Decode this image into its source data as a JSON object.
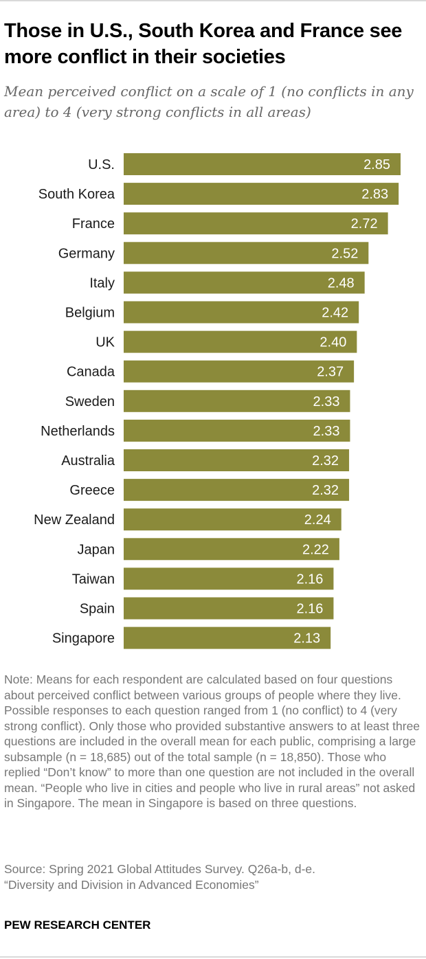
{
  "title": "Those in U.S., South Korea and France see more conflict in their societies",
  "subtitle": "Mean perceived conflict on a scale of 1 (no conflicts in any area) to 4 (very strong conflicts in all areas)",
  "note": "Note: Means for each respondent are calculated based on four questions about perceived conflict between various groups of people where they live. Possible responses to each question ranged from 1 (no conflict) to 4 (very strong conflict). Only those who provided substantive answers to at least three questions are included in the overall mean for each public, comprising a large subsample (n = 18,685) out of the total sample (n = 18,850). Those who replied “Don’t know” to more than one question are not included in the overall mean. “People who live in cities and people who live in rural areas” not asked in Singapore. The mean in Singapore is based on three questions.",
  "source_line1": "Source: Spring 2021 Global Attitudes Survey. Q26a-b, d-e.",
  "source_line2": "“Diversity and Division in Advanced Economies”",
  "brand": "PEW RESEARCH CENTER",
  "colors": {
    "bar": "#8b8a3a",
    "value_text": "#ffffff",
    "label_text": "#1a1a1a"
  },
  "chart_data": {
    "type": "bar",
    "orientation": "horizontal",
    "title": "Those in U.S., South Korea and France see more conflict in their societies",
    "subtitle": "Mean perceived conflict on a scale of 1 (no conflicts in any area) to 4 (very strong conflicts in all areas)",
    "categories": [
      "U.S.",
      "South Korea",
      "France",
      "Germany",
      "Italy",
      "Belgium",
      "UK",
      "Canada",
      "Sweden",
      "Netherlands",
      "Australia",
      "Greece",
      "New Zealand",
      "Japan",
      "Taiwan",
      "Spain",
      "Singapore"
    ],
    "values": [
      2.85,
      2.83,
      2.72,
      2.52,
      2.48,
      2.42,
      2.4,
      2.37,
      2.33,
      2.33,
      2.32,
      2.32,
      2.24,
      2.22,
      2.16,
      2.16,
      2.13
    ],
    "value_labels": [
      "2.85",
      "2.83",
      "2.72",
      "2.52",
      "2.48",
      "2.42",
      "2.40",
      "2.37",
      "2.33",
      "2.33",
      "2.32",
      "2.32",
      "2.24",
      "2.22",
      "2.16",
      "2.16",
      "2.13"
    ],
    "xlim": [
      0,
      2.85
    ],
    "grid": false,
    "legend": "none"
  }
}
